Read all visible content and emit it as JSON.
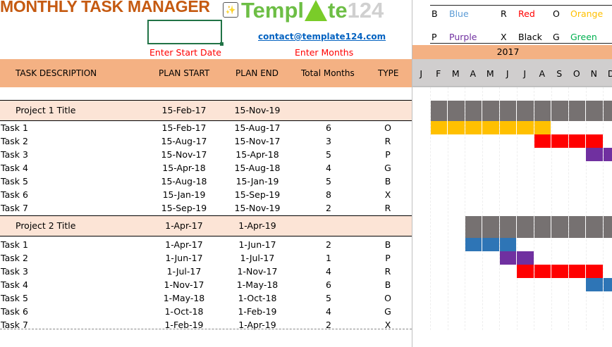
{
  "title": "MONTHLY TASK MANAGER",
  "logo": {
    "part1": "Templ",
    "part2": "te",
    "part3": "124"
  },
  "email": "contact@template124.com",
  "hints": {
    "start": "Enter Start Date",
    "months": "Enter Months"
  },
  "start_date_value": "",
  "headers": {
    "task": "TASK DESCRIPTION",
    "start": "PLAN START",
    "end": "PLAN END",
    "months": "Total Months",
    "type": "TYPE"
  },
  "legend": [
    {
      "code": "B",
      "name": "Blue",
      "color": "#5B9BD5"
    },
    {
      "code": "R",
      "name": "Red",
      "color": "#FF0000"
    },
    {
      "code": "O",
      "name": "Orange",
      "color": "#FFC000"
    },
    {
      "code": "P",
      "name": "Purple",
      "color": "#7030A0"
    },
    {
      "code": "X",
      "name": "Black",
      "color": "#000000"
    },
    {
      "code": "G",
      "name": "Green",
      "color": "#00B050"
    }
  ],
  "bar_colors": {
    "B": "#2E75B6",
    "R": "#FF0000",
    "O": "#FFC000",
    "P": "#7030A0",
    "X": "#262626",
    "G": "#00B050",
    "project": "#767171"
  },
  "gantt": {
    "year": "2017",
    "months": [
      "J",
      "F",
      "M",
      "A",
      "M",
      "J",
      "J",
      "A",
      "S",
      "O",
      "N",
      "D"
    ]
  },
  "projects": [
    {
      "title": "Project 1 Title",
      "start": "15-Feb-17",
      "end": "15-Nov-19",
      "tasks": [
        {
          "name": "Task 1",
          "start": "15-Feb-17",
          "end": "15-Aug-17",
          "months": "6",
          "type": "O"
        },
        {
          "name": "Task 2",
          "start": "15-Aug-17",
          "end": "15-Nov-17",
          "months": "3",
          "type": "R"
        },
        {
          "name": "Task 3",
          "start": "15-Nov-17",
          "end": "15-Apr-18",
          "months": "5",
          "type": "P"
        },
        {
          "name": "Task 4",
          "start": "15-Apr-18",
          "end": "15-Aug-18",
          "months": "4",
          "type": "G"
        },
        {
          "name": "Task 5",
          "start": "15-Aug-18",
          "end": "15-Jan-19",
          "months": "5",
          "type": "B"
        },
        {
          "name": "Task 6",
          "start": "15-Jan-19",
          "end": "15-Sep-19",
          "months": "8",
          "type": "X"
        },
        {
          "name": "Task 7",
          "start": "15-Sep-19",
          "end": "15-Nov-19",
          "months": "2",
          "type": "R"
        }
      ]
    },
    {
      "title": "Project 2 Title",
      "start": "1-Apr-17",
      "end": "1-Apr-19",
      "tasks": [
        {
          "name": "Task 1",
          "start": "1-Apr-17",
          "end": "1-Jun-17",
          "months": "2",
          "type": "B"
        },
        {
          "name": "Task 2",
          "start": "1-Jun-17",
          "end": "1-Jul-17",
          "months": "1",
          "type": "P"
        },
        {
          "name": "Task 3",
          "start": "1-Jul-17",
          "end": "1-Nov-17",
          "months": "4",
          "type": "R"
        },
        {
          "name": "Task 4",
          "start": "1-Nov-17",
          "end": "1-May-18",
          "months": "6",
          "type": "B"
        },
        {
          "name": "Task 5",
          "start": "1-May-18",
          "end": "1-Oct-18",
          "months": "5",
          "type": "O"
        },
        {
          "name": "Task 6",
          "start": "1-Oct-18",
          "end": "1-Feb-19",
          "months": "4",
          "type": "G"
        },
        {
          "name": "Task 7",
          "start": "1-Feb-19",
          "end": "1-Apr-19",
          "months": "2",
          "type": "X"
        }
      ]
    }
  ]
}
